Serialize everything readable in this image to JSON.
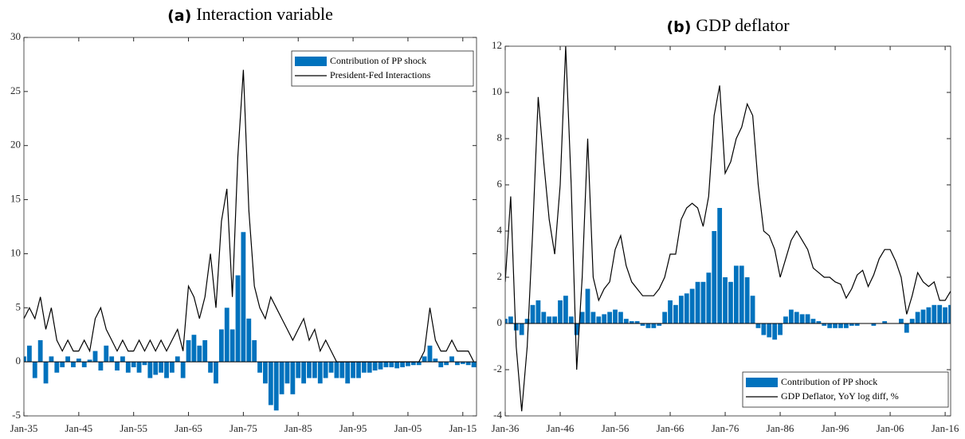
{
  "chart_data": [
    {
      "type": "combo",
      "label": "(a)",
      "title": "Interaction variable",
      "x": [
        1935,
        1936,
        1937,
        1938,
        1939,
        1940,
        1941,
        1942,
        1943,
        1944,
        1945,
        1946,
        1947,
        1948,
        1949,
        1950,
        1951,
        1952,
        1953,
        1954,
        1955,
        1956,
        1957,
        1958,
        1959,
        1960,
        1961,
        1962,
        1963,
        1964,
        1965,
        1966,
        1967,
        1968,
        1969,
        1970,
        1971,
        1972,
        1973,
        1974,
        1975,
        1976,
        1977,
        1978,
        1979,
        1980,
        1981,
        1982,
        1983,
        1984,
        1985,
        1986,
        1987,
        1988,
        1989,
        1990,
        1991,
        1992,
        1993,
        1994,
        1995,
        1996,
        1997,
        1998,
        1999,
        2000,
        2001,
        2002,
        2003,
        2004,
        2005,
        2006,
        2007,
        2008,
        2009,
        2010,
        2011,
        2012,
        2013,
        2014,
        2015,
        2016,
        2017
      ],
      "series": [
        {
          "name": "Contribution of PP shock",
          "color": "#0072bd",
          "kind": "bar",
          "values": [
            0.5,
            1.5,
            -1.5,
            2,
            -2,
            0.5,
            -1,
            -0.5,
            0.5,
            -0.5,
            0.3,
            -0.5,
            0.2,
            1,
            -0.8,
            1.5,
            0.5,
            -0.8,
            0.5,
            -1,
            -0.5,
            -1,
            -0.3,
            -1.5,
            -1.2,
            -1,
            -1.5,
            -1,
            0.5,
            -1.5,
            2,
            2.5,
            1.5,
            2,
            -1,
            -2,
            3,
            5,
            3,
            8,
            12,
            4,
            2,
            -1,
            -2,
            -4,
            -4.5,
            -3,
            -2,
            -3,
            -1.5,
            -2,
            -1.5,
            -1.5,
            -2,
            -1.5,
            -1,
            -1.5,
            -1.5,
            -2,
            -1.5,
            -1.5,
            -1,
            -1,
            -0.8,
            -0.7,
            -0.5,
            -0.5,
            -0.6,
            -0.5,
            -0.4,
            -0.3,
            -0.3,
            0.5,
            1.5,
            0.3,
            -0.5,
            -0.3,
            0.5,
            -0.3,
            -0.2,
            -0.3,
            -0.5
          ]
        },
        {
          "name": "President-Fed Interactions",
          "color": "#000000",
          "kind": "line",
          "values": [
            4,
            5,
            4,
            6,
            3,
            5,
            2,
            1,
            2,
            1,
            1,
            2,
            1,
            4,
            5,
            3,
            2,
            1,
            2,
            1,
            1,
            2,
            1,
            2,
            1,
            2,
            1,
            2,
            3,
            1,
            7,
            6,
            4,
            6,
            10,
            5,
            13,
            16,
            6,
            19,
            27,
            14,
            7,
            5,
            4,
            6,
            5,
            4,
            3,
            2,
            3,
            4,
            2,
            3,
            1,
            2,
            1,
            0,
            0,
            0,
            0,
            0,
            0,
            0,
            0,
            0,
            0,
            0,
            0,
            0,
            0,
            0,
            0,
            1,
            5,
            2,
            1,
            1,
            2,
            1,
            1,
            1,
            0
          ]
        }
      ],
      "xlim": [
        1935,
        2017.5
      ],
      "xticks": [
        {
          "value": 1935,
          "label": "Jan-35"
        },
        {
          "value": 1945,
          "label": "Jan-45"
        },
        {
          "value": 1955,
          "label": "Jan-55"
        },
        {
          "value": 1965,
          "label": "Jan-65"
        },
        {
          "value": 1975,
          "label": "Jan-75"
        },
        {
          "value": 1985,
          "label": "Jan-85"
        },
        {
          "value": 1995,
          "label": "Jan-95"
        },
        {
          "value": 2005,
          "label": "Jan-05"
        },
        {
          "value": 2015,
          "label": "Jan-15"
        }
      ],
      "ylim": [
        -5,
        30
      ],
      "yticks": [
        -5,
        0,
        5,
        10,
        15,
        20,
        25,
        30
      ],
      "legend": "upper-right"
    },
    {
      "type": "combo",
      "label": "(b)",
      "title": "GDP deflator",
      "x": [
        1936,
        1937,
        1938,
        1939,
        1940,
        1941,
        1942,
        1943,
        1944,
        1945,
        1946,
        1947,
        1948,
        1949,
        1950,
        1951,
        1952,
        1953,
        1954,
        1955,
        1956,
        1957,
        1958,
        1959,
        1960,
        1961,
        1962,
        1963,
        1964,
        1965,
        1966,
        1967,
        1968,
        1969,
        1970,
        1971,
        1972,
        1973,
        1974,
        1975,
        1976,
        1977,
        1978,
        1979,
        1980,
        1981,
        1982,
        1983,
        1984,
        1985,
        1986,
        1987,
        1988,
        1989,
        1990,
        1991,
        1992,
        1993,
        1994,
        1995,
        1996,
        1997,
        1998,
        1999,
        2000,
        2001,
        2002,
        2003,
        2004,
        2005,
        2006,
        2007,
        2008,
        2009,
        2010,
        2011,
        2012,
        2013,
        2014,
        2015,
        2016,
        2017
      ],
      "series": [
        {
          "name": "Contribution of PP shock",
          "color": "#0072bd",
          "kind": "bar",
          "values": [
            0.2,
            0.3,
            -0.3,
            -0.5,
            0.2,
            0.8,
            1,
            0.5,
            0.3,
            0.3,
            1,
            1.2,
            0.3,
            -0.5,
            0.5,
            1.5,
            0.5,
            0.3,
            0.4,
            0.5,
            0.6,
            0.5,
            0.2,
            0.1,
            0.1,
            -0.1,
            -0.2,
            -0.2,
            -0.1,
            0.5,
            1,
            0.8,
            1.2,
            1.3,
            1.5,
            1.8,
            1.8,
            2.2,
            4,
            5,
            2,
            1.8,
            2.5,
            2.5,
            2,
            1.2,
            -0.2,
            -0.5,
            -0.6,
            -0.7,
            -0.5,
            0.3,
            0.6,
            0.5,
            0.4,
            0.4,
            0.2,
            0.1,
            -0.1,
            -0.2,
            -0.2,
            -0.2,
            -0.2,
            -0.1,
            -0.1,
            0,
            0,
            -0.1,
            0,
            0.1,
            0,
            0,
            0.2,
            -0.4,
            0.2,
            0.5,
            0.6,
            0.7,
            0.8,
            0.8,
            0.7,
            0.8
          ]
        },
        {
          "name": "GDP Deflator, YoY log diff, %",
          "color": "#000000",
          "kind": "line",
          "values": [
            1.8,
            5.5,
            -1,
            -3.8,
            -1,
            4,
            9.8,
            7,
            4.5,
            3,
            6,
            12,
            6,
            -2,
            2,
            8,
            2,
            1,
            1.5,
            1.8,
            3.2,
            3.8,
            2.5,
            1.8,
            1.5,
            1.2,
            1.2,
            1.2,
            1.5,
            2,
            3,
            3,
            4.5,
            5,
            5.2,
            5,
            4.2,
            5.5,
            9,
            10.3,
            6.5,
            7,
            8,
            8.5,
            9.5,
            9,
            6,
            4,
            3.8,
            3.2,
            2,
            2.8,
            3.6,
            4,
            3.6,
            3.2,
            2.4,
            2.2,
            2,
            2,
            1.8,
            1.7,
            1.1,
            1.5,
            2.1,
            2.3,
            1.6,
            2.1,
            2.8,
            3.2,
            3.2,
            2.7,
            2,
            0.4,
            1.2,
            2.2,
            1.8,
            1.6,
            1.8,
            1,
            1,
            1.4
          ]
        }
      ],
      "xlim": [
        1936,
        2017
      ],
      "xticks": [
        {
          "value": 1936,
          "label": "Jan-36"
        },
        {
          "value": 1946,
          "label": "Jan-46"
        },
        {
          "value": 1956,
          "label": "Jan-56"
        },
        {
          "value": 1966,
          "label": "Jan-66"
        },
        {
          "value": 1976,
          "label": "Jan-76"
        },
        {
          "value": 1986,
          "label": "Jan-86"
        },
        {
          "value": 1996,
          "label": "Jan-96"
        },
        {
          "value": 2006,
          "label": "Jan-06"
        },
        {
          "value": 2016,
          "label": "Jan-16"
        }
      ],
      "ylim": [
        -4,
        12
      ],
      "yticks": [
        -4,
        -2,
        0,
        2,
        4,
        6,
        8,
        10,
        12
      ],
      "legend": "lower-right"
    }
  ]
}
